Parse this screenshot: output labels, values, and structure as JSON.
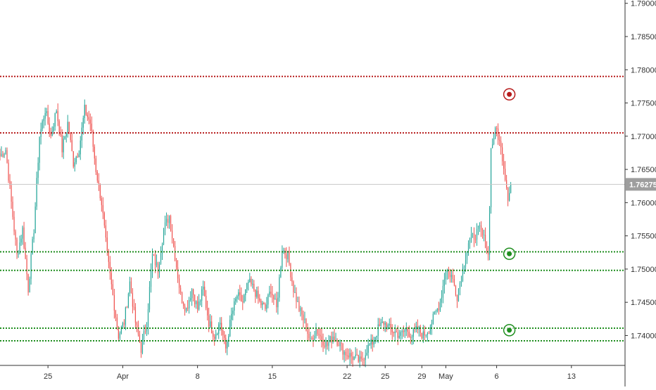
{
  "colors": {
    "up": "#26a69a",
    "down": "#ef5350",
    "resistance": "#b71c1c",
    "support": "#1e8e1e",
    "current_line": "#c8c8c8",
    "price_tag": "#9e9e9e",
    "axis": "#333333"
  },
  "chart_data": {
    "type": "candlestick",
    "ylim": [
      1.7355,
      1.7905
    ],
    "y_ticks": [
      "1.79000",
      "1.78500",
      "1.78000",
      "1.77500",
      "1.77000",
      "1.76500",
      "1.76000",
      "1.75500",
      "1.75000",
      "1.74500",
      "1.74000"
    ],
    "x_ticks": [
      {
        "label": "25",
        "index": 34
      },
      {
        "label": "Apr",
        "index": 87
      },
      {
        "label": "8",
        "index": 140
      },
      {
        "label": "15",
        "index": 193
      },
      {
        "label": "22",
        "index": 246
      },
      {
        "label": "25",
        "index": 273
      },
      {
        "label": "29",
        "index": 299
      },
      {
        "label": "May",
        "index": 316
      },
      {
        "label": "6",
        "index": 352
      },
      {
        "label": "13",
        "index": 405
      }
    ],
    "index_range": [
      0,
      443
    ],
    "current_price": "1.76275",
    "horizontal_levels": [
      {
        "price": 1.779,
        "kind": "resistance"
      },
      {
        "price": 1.7705,
        "kind": "resistance"
      },
      {
        "price": 1.7526,
        "kind": "support"
      },
      {
        "price": 1.7498,
        "kind": "support"
      },
      {
        "price": 1.7411,
        "kind": "support"
      },
      {
        "price": 1.7392,
        "kind": "support"
      }
    ],
    "markers": [
      {
        "index": 361,
        "price": 1.7763,
        "kind": "resistance"
      },
      {
        "index": 361,
        "price": 1.7523,
        "kind": "support"
      },
      {
        "index": 361,
        "price": 1.7408,
        "kind": "support"
      }
    ],
    "ohlc_waypoints": [
      [
        0,
        1.767
      ],
      [
        4,
        1.768
      ],
      [
        8,
        1.76
      ],
      [
        12,
        1.752
      ],
      [
        16,
        1.756
      ],
      [
        20,
        1.747
      ],
      [
        24,
        1.756
      ],
      [
        28,
        1.77
      ],
      [
        32,
        1.774
      ],
      [
        36,
        1.77
      ],
      [
        40,
        1.774
      ],
      [
        44,
        1.768
      ],
      [
        48,
        1.772
      ],
      [
        52,
        1.766
      ],
      [
        56,
        1.768
      ],
      [
        60,
        1.774
      ],
      [
        64,
        1.772
      ],
      [
        68,
        1.765
      ],
      [
        72,
        1.76
      ],
      [
        76,
        1.752
      ],
      [
        80,
        1.746
      ],
      [
        84,
        1.74
      ],
      [
        88,
        1.742
      ],
      [
        92,
        1.748
      ],
      [
        96,
        1.742
      ],
      [
        100,
        1.738
      ],
      [
        104,
        1.742
      ],
      [
        108,
        1.752
      ],
      [
        112,
        1.75
      ],
      [
        116,
        1.756
      ],
      [
        120,
        1.758
      ],
      [
        124,
        1.752
      ],
      [
        128,
        1.746
      ],
      [
        132,
        1.744
      ],
      [
        136,
        1.747
      ],
      [
        140,
        1.744
      ],
      [
        144,
        1.747
      ],
      [
        148,
        1.742
      ],
      [
        152,
        1.74
      ],
      [
        156,
        1.742
      ],
      [
        160,
        1.738
      ],
      [
        164,
        1.743
      ],
      [
        168,
        1.746
      ],
      [
        172,
        1.745
      ],
      [
        176,
        1.748
      ],
      [
        180,
        1.747
      ],
      [
        184,
        1.745
      ],
      [
        188,
        1.744
      ],
      [
        192,
        1.747
      ],
      [
        196,
        1.744
      ],
      [
        200,
        1.753
      ],
      [
        204,
        1.752
      ],
      [
        208,
        1.747
      ],
      [
        212,
        1.744
      ],
      [
        216,
        1.742
      ],
      [
        220,
        1.739
      ],
      [
        224,
        1.741
      ],
      [
        228,
        1.7395
      ],
      [
        232,
        1.7385
      ],
      [
        236,
        1.74
      ],
      [
        240,
        1.739
      ],
      [
        244,
        1.7375
      ],
      [
        248,
        1.737
      ],
      [
        252,
        1.7365
      ],
      [
        256,
        1.736
      ],
      [
        260,
        1.738
      ],
      [
        264,
        1.739
      ],
      [
        268,
        1.741
      ],
      [
        272,
        1.742
      ],
      [
        276,
        1.741
      ],
      [
        280,
        1.7405
      ],
      [
        284,
        1.74
      ],
      [
        288,
        1.741
      ],
      [
        292,
        1.74
      ],
      [
        296,
        1.741
      ],
      [
        300,
        1.74
      ],
      [
        304,
        1.741
      ],
      [
        308,
        1.743
      ],
      [
        312,
        1.745
      ],
      [
        316,
        1.75
      ],
      [
        320,
        1.749
      ],
      [
        324,
        1.746
      ],
      [
        328,
        1.75
      ],
      [
        332,
        1.754
      ],
      [
        336,
        1.755
      ],
      [
        340,
        1.756
      ],
      [
        344,
        1.754
      ],
      [
        346,
        1.752
      ],
      [
        348,
        1.768
      ],
      [
        350,
        1.77
      ],
      [
        352,
        1.771
      ],
      [
        354,
        1.769
      ],
      [
        356,
        1.767
      ],
      [
        358,
        1.764
      ],
      [
        360,
        1.761
      ],
      [
        362,
        1.7627
      ]
    ]
  }
}
